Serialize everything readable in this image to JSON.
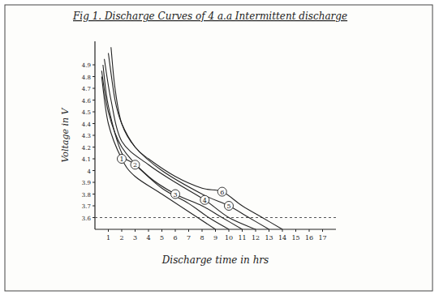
{
  "chart_data": {
    "type": "line",
    "title": "Fig 1. Discharge Curves of 4 a.a Intermittent discharge",
    "x_label": "Discharge time in hrs",
    "y_label": "Voltage in V",
    "xlim": [
      0,
      18
    ],
    "xticks": [
      1,
      2,
      3,
      4,
      5,
      6,
      7,
      8,
      9,
      10,
      11,
      12,
      13,
      14,
      15,
      16,
      17
    ],
    "ylim": [
      3.5,
      5.1
    ],
    "yticks": [
      3.6,
      3.7,
      3.8,
      3.9,
      4,
      4.1,
      4.2,
      4.3,
      4.4,
      4.5,
      4.6,
      4.7,
      4.8,
      4.9
    ],
    "hlines": [
      3.6
    ],
    "grid": false,
    "series": [
      {
        "name": "1",
        "color": "#222222",
        "x": [
          0.5,
          1,
          2,
          3,
          5,
          7,
          9
        ],
        "values": [
          4.8,
          4.4,
          4.1,
          3.95,
          3.8,
          3.65,
          3.5
        ]
      },
      {
        "name": "2",
        "color": "#222222",
        "x": [
          0.6,
          1,
          2,
          3,
          5,
          7,
          8.5,
          10
        ],
        "values": [
          4.9,
          4.55,
          4.15,
          4.05,
          3.85,
          3.72,
          3.6,
          3.5
        ]
      },
      {
        "name": "3",
        "color": "#222222",
        "x": [
          0.5,
          1,
          2,
          4,
          6,
          8,
          9.5,
          11
        ],
        "values": [
          4.85,
          4.5,
          4.2,
          3.95,
          3.8,
          3.7,
          3.6,
          3.5
        ]
      },
      {
        "name": "4",
        "color": "#222222",
        "x": [
          0.7,
          1.2,
          2,
          4,
          6,
          8.2,
          10,
          12
        ],
        "values": [
          4.95,
          4.6,
          4.25,
          4.05,
          3.9,
          3.75,
          3.6,
          3.5
        ]
      },
      {
        "name": "5",
        "color": "#222222",
        "x": [
          1.2,
          1.5,
          2,
          3,
          5,
          8,
          10,
          11.5,
          13
        ],
        "values": [
          5.05,
          4.7,
          4.4,
          4.2,
          4,
          3.8,
          3.7,
          3.6,
          3.5
        ]
      },
      {
        "name": "6",
        "color": "#222222",
        "x": [
          1,
          1.5,
          2,
          3,
          4,
          6,
          8,
          9.5,
          11,
          12.5,
          14
        ],
        "values": [
          5,
          4.6,
          4.4,
          4.2,
          4.1,
          3.95,
          3.85,
          3.82,
          3.7,
          3.6,
          3.5
        ]
      }
    ]
  }
}
